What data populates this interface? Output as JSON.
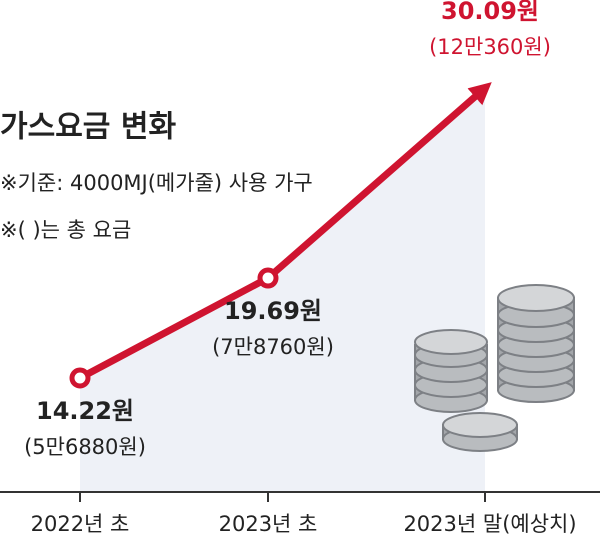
{
  "chart_data": {
    "type": "line",
    "title": "가스요금 변화",
    "notes": [
      "※기준: 4000MJ(메가줄) 사용 가구",
      "※(  )는 총 요금"
    ],
    "categories": [
      "2022년 초",
      "2023년 초",
      "2023년 말(예상치)"
    ],
    "values": [
      14.22,
      19.69,
      30.09
    ],
    "value_labels": [
      "14.22원",
      "19.69원",
      "30.09원"
    ],
    "total_labels": [
      "(5만6880원)",
      "(7만8760원)",
      "(12만360원)"
    ],
    "color": "#cf1430"
  }
}
